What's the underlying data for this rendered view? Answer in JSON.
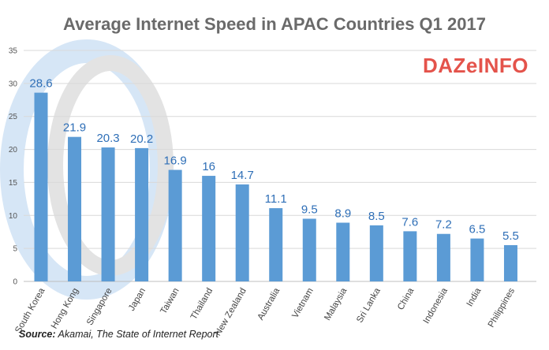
{
  "header": {
    "title": "Average Internet Speed in APAC Countries Q1 2017",
    "logo_text": "DAZeINFO"
  },
  "footer": {
    "source_label": "Source:",
    "source_text": " Akamai, The State of Internet Report"
  },
  "colors": {
    "bar": "#5b9bd5",
    "title": "#6a6a6a",
    "logo": "#e4534b",
    "data_label": "#2f6fb7"
  },
  "chart_data": {
    "type": "bar",
    "title": "Average Internet Speed in APAC Countries Q1 2017",
    "xlabel": "",
    "ylabel": "",
    "categories": [
      "South Korea",
      "Hong Kong",
      "Singapore",
      "Japan",
      "Taiwan",
      "Thailand",
      "New Zealand",
      "Australia",
      "Vietnam",
      "Malaysia",
      "Sri Lanka",
      "China",
      "Indonesia",
      "India",
      "Philippines"
    ],
    "values": [
      28.6,
      21.9,
      20.3,
      20.2,
      16.9,
      16,
      14.7,
      11.1,
      9.5,
      8.9,
      8.5,
      7.6,
      7.2,
      6.5,
      5.5
    ],
    "value_labels": [
      "28.6",
      "21.9",
      "20.3",
      "20.2",
      "16.9",
      "16",
      "14.7",
      "11.1",
      "9.5",
      "8.9",
      "8.5",
      "7.6",
      "7.2",
      "6.5",
      "5.5"
    ],
    "ylim": [
      0,
      35
    ],
    "yticks": [
      0,
      5,
      10,
      15,
      20,
      25,
      30,
      35
    ],
    "grid": true,
    "legend": "none"
  }
}
